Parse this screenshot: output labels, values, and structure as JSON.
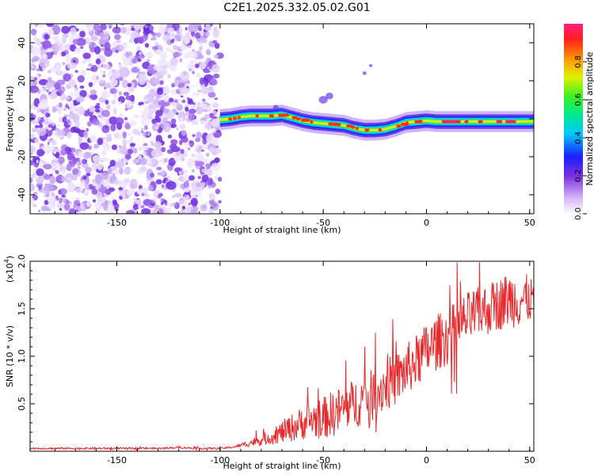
{
  "title": "C2E1.2025.332.05.02.G01",
  "chart_data": [
    {
      "type": "heatmap",
      "xlabel": "Height of straight line (km)",
      "ylabel": "Frequency (Hz)",
      "xlim": [
        -192,
        52
      ],
      "ylim": [
        -50,
        50
      ],
      "xticks": [
        -150,
        -100,
        -50,
        0,
        50
      ],
      "yticks": [
        -40,
        -20,
        0,
        20,
        40
      ],
      "colorbar_label": "Normalized spectral amplitude",
      "colorbar_ticks": [
        "0.0",
        "0.2",
        "0.4",
        "0.6",
        "0.8"
      ],
      "colorbar_range": [
        0,
        1
      ],
      "noise_region_x": [
        -192,
        -100
      ],
      "ridge": {
        "name": "frequency ridge",
        "x": [
          -100,
          -95,
          -90,
          -85,
          -80,
          -75,
          -70,
          -65,
          -60,
          -55,
          -50,
          -45,
          -40,
          -35,
          -30,
          -25,
          -20,
          -15,
          -10,
          -5,
          0,
          5,
          10,
          15,
          20,
          25,
          30,
          35,
          40,
          45,
          50
        ],
        "freq": [
          -0.5,
          0,
          1,
          1.5,
          1.5,
          1.5,
          2,
          0.5,
          -1,
          -2,
          -2.5,
          -3,
          -3.5,
          -5,
          -6,
          -6,
          -5.5,
          -4,
          -2,
          -1.5,
          -1,
          -1.5,
          -1.5,
          -1.5,
          -1.5,
          -1.5,
          -1.5,
          -1.5,
          -1.5,
          -1.5,
          -1.5
        ]
      }
    },
    {
      "type": "line",
      "xlabel": "Height of straight line (km)",
      "ylabel": "SNR (10 * v/v)",
      "multiplier": "(x10",
      "multiplier_exp": "4",
      "multiplier_close": ")",
      "xlim": [
        -192,
        52
      ],
      "ylim": [
        0,
        2.0
      ],
      "xticks": [
        -150,
        -100,
        -50,
        0,
        50
      ],
      "yticks": [
        "0.5",
        "1.0",
        "1.5",
        "2.0"
      ],
      "series": [
        {
          "name": "SNR",
          "color": "#e8282a",
          "x": [
            -192,
            -180,
            -170,
            -160,
            -150,
            -140,
            -130,
            -120,
            -110,
            -100,
            -95,
            -90,
            -85,
            -80,
            -75,
            -70,
            -65,
            -60,
            -55,
            -50,
            -45,
            -40,
            -35,
            -30,
            -25,
            -20,
            -15,
            -10,
            -5,
            0,
            5,
            10,
            15,
            20,
            25,
            30,
            35,
            40,
            45,
            50,
            52
          ],
          "mean": [
            0.03,
            0.03,
            0.03,
            0.03,
            0.03,
            0.03,
            0.03,
            0.04,
            0.03,
            0.03,
            0.04,
            0.06,
            0.09,
            0.12,
            0.15,
            0.2,
            0.25,
            0.3,
            0.33,
            0.35,
            0.4,
            0.45,
            0.5,
            0.55,
            0.6,
            0.7,
            0.75,
            0.85,
            0.95,
            1.05,
            1.15,
            1.2,
            1.3,
            1.4,
            1.45,
            1.5,
            1.55,
            1.6,
            1.6,
            1.6,
            1.6
          ],
          "spread": [
            0.01,
            0.01,
            0.01,
            0.01,
            0.01,
            0.01,
            0.01,
            0.01,
            0.01,
            0.01,
            0.01,
            0.02,
            0.04,
            0.06,
            0.08,
            0.12,
            0.15,
            0.18,
            0.2,
            0.22,
            0.25,
            0.25,
            0.26,
            0.27,
            0.28,
            0.28,
            0.28,
            0.28,
            0.28,
            0.3,
            0.3,
            0.3,
            0.3,
            0.28,
            0.28,
            0.28,
            0.28,
            0.3,
            0.3,
            0.25,
            0.2
          ]
        }
      ]
    }
  ]
}
